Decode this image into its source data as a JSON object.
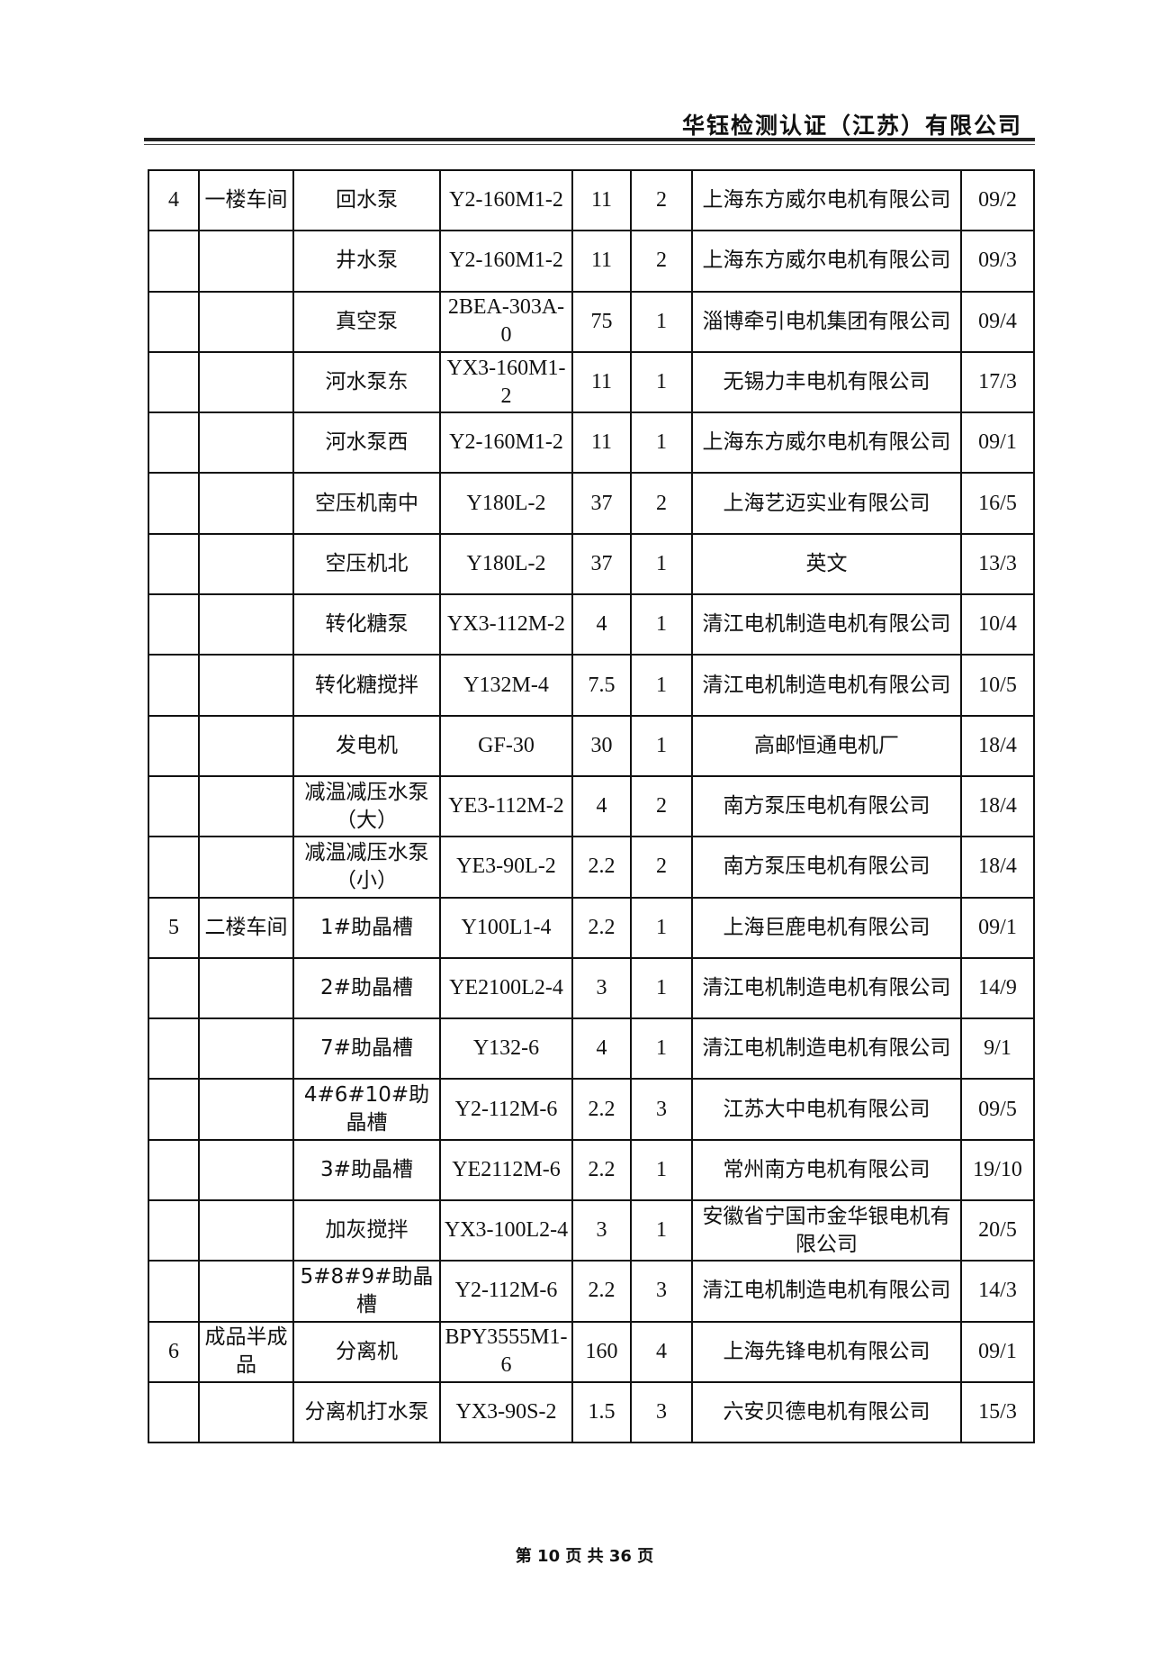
{
  "header": {
    "company": "华钰检测认证（江苏）有限公司"
  },
  "table": {
    "rows": [
      [
        "4",
        "一楼车间",
        "回水泵",
        "Y2-160M1-2",
        "11",
        "2",
        "上海东方威尔电机有限公司",
        "09/2"
      ],
      [
        "",
        "",
        "井水泵",
        "Y2-160M1-2",
        "11",
        "2",
        "上海东方威尔电机有限公司",
        "09/3"
      ],
      [
        "",
        "",
        "真空泵",
        "2BEA-303A-0",
        "75",
        "1",
        "淄博牵引电机集团有限公司",
        "09/4"
      ],
      [
        "",
        "",
        "河水泵东",
        "YX3-160M1-2",
        "11",
        "1",
        "无锡力丰电机有限公司",
        "17/3"
      ],
      [
        "",
        "",
        "河水泵西",
        "Y2-160M1-2",
        "11",
        "1",
        "上海东方威尔电机有限公司",
        "09/1"
      ],
      [
        "",
        "",
        "空压机南中",
        "Y180L-2",
        "37",
        "2",
        "上海艺迈实业有限公司",
        "16/5"
      ],
      [
        "",
        "",
        "空压机北",
        "Y180L-2",
        "37",
        "1",
        "英文",
        "13/3"
      ],
      [
        "",
        "",
        "转化糖泵",
        "YX3-112M-2",
        "4",
        "1",
        "清江电机制造电机有限公司",
        "10/4"
      ],
      [
        "",
        "",
        "转化糖搅拌",
        "Y132M-4",
        "7.5",
        "1",
        "清江电机制造电机有限公司",
        "10/5"
      ],
      [
        "",
        "",
        "发电机",
        "GF-30",
        "30",
        "1",
        "高邮恒通电机厂",
        "18/4"
      ],
      [
        "",
        "",
        "减温减压水泵（大）",
        "YE3-112M-2",
        "4",
        "2",
        "南方泵压电机有限公司",
        "18/4"
      ],
      [
        "",
        "",
        "减温减压水泵（小）",
        "YE3-90L-2",
        "2.2",
        "2",
        "南方泵压电机有限公司",
        "18/4"
      ],
      [
        "5",
        "二楼车间",
        "1#助晶槽",
        "Y100L1-4",
        "2.2",
        "1",
        "上海巨鹿电机有限公司",
        "09/1"
      ],
      [
        "",
        "",
        "2#助晶槽",
        "YE2100L2-4",
        "3",
        "1",
        "清江电机制造电机有限公司",
        "14/9"
      ],
      [
        "",
        "",
        "7#助晶槽",
        "Y132-6",
        "4",
        "1",
        "清江电机制造电机有限公司",
        "9/1"
      ],
      [
        "",
        "",
        "4#6#10#助晶槽",
        "Y2-112M-6",
        "2.2",
        "3",
        "江苏大中电机有限公司",
        "09/5"
      ],
      [
        "",
        "",
        "3#助晶槽",
        "YE2112M-6",
        "2.2",
        "1",
        "常州南方电机有限公司",
        "19/10"
      ],
      [
        "",
        "",
        "加灰搅拌",
        "YX3-100L2-4",
        "3",
        "1",
        "安徽省宁国市金华银电机有限公司",
        "20/5"
      ],
      [
        "",
        "",
        "5#8#9#助晶槽",
        "Y2-112M-6",
        "2.2",
        "3",
        "清江电机制造电机有限公司",
        "14/3"
      ],
      [
        "6",
        "成品半成品",
        "分离机",
        "BPY3555M1-6",
        "160",
        "4",
        "上海先锋电机有限公司",
        "09/1"
      ],
      [
        "",
        "",
        "分离机打水泵",
        "YX3-90S-2",
        "1.5",
        "3",
        "六安贝德电机有限公司",
        "15/3"
      ]
    ]
  },
  "footer": {
    "page": "第 10 页 共 36 页"
  }
}
